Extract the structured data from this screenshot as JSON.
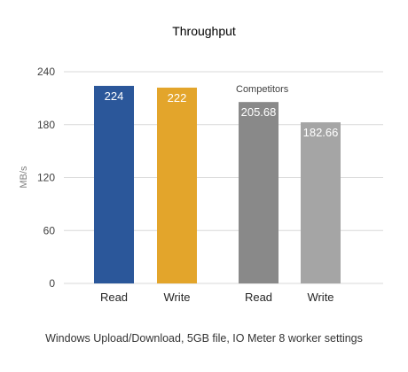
{
  "chart_data": {
    "type": "bar",
    "title": "Throughput",
    "ylabel": "MB/s",
    "xlabel": "",
    "ylim": [
      0,
      240
    ],
    "yticks": [
      0,
      60,
      120,
      180,
      240
    ],
    "grid": true,
    "categories": [
      "Read",
      "Write",
      "Read",
      "Write"
    ],
    "values": [
      224,
      222,
      205.68,
      182.66
    ],
    "value_labels": [
      "224",
      "222",
      "205.68",
      "182.66"
    ],
    "colors": [
      "#2B579A",
      "#E3A52B",
      "#898989",
      "#A5A5A5"
    ],
    "annotation": "Competitors",
    "caption": "Windows Upload/Download, 5GB file, IO Meter 8 worker settings"
  }
}
